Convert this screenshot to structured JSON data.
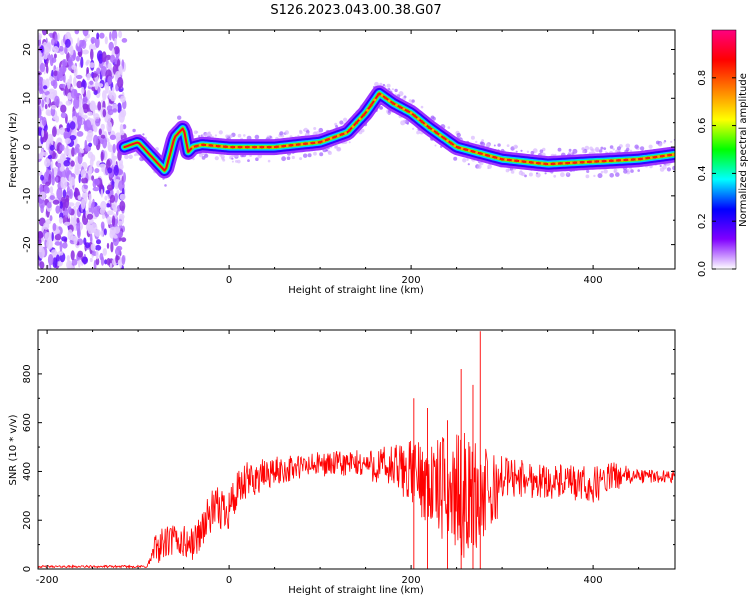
{
  "title": "S126.2023.043.00.38.G07",
  "chart_data": [
    {
      "type": "heatmap",
      "xlabel": "Height of straight line (km)",
      "ylabel": "Frequency (Hz)",
      "xlim": [
        -210,
        490
      ],
      "ylim": [
        -25,
        24
      ],
      "xticks": [
        -200,
        0,
        200,
        400
      ],
      "yticks": [
        -20,
        -10,
        0,
        10,
        20
      ],
      "colorbar": {
        "label": "Normalized spectral amplitude",
        "range": [
          0,
          1
        ],
        "ticks": [
          "0.0",
          "0.2",
          "0.4",
          "0.6",
          "0.8"
        ],
        "colormap": [
          "#ffffff",
          "#8000ff",
          "#0000ff",
          "#00ffff",
          "#00ff00",
          "#ffff00",
          "#ff8000",
          "#ff0000",
          "#ff0080"
        ]
      },
      "noise_region": {
        "x": [
          -210,
          -115
        ],
        "freq": [
          -25,
          24
        ]
      },
      "ridge": {
        "x": [
          -115,
          -100,
          -90,
          -80,
          -70,
          -60,
          -50,
          -45,
          -40,
          -30,
          0,
          50,
          100,
          130,
          150,
          165,
          180,
          200,
          220,
          250,
          300,
          350,
          400,
          450,
          490
        ],
        "freq": [
          0,
          1,
          -1,
          -3,
          -5,
          2,
          4,
          -1,
          0,
          0.5,
          0,
          0,
          1,
          3,
          7,
          11,
          9,
          7,
          4,
          0,
          -2.5,
          -3.5,
          -3,
          -2.5,
          -1.5
        ]
      }
    },
    {
      "type": "line",
      "xlabel": "Height of straight line (km)",
      "ylabel": "SNR (10 * v/v)",
      "xlim": [
        -210,
        490
      ],
      "ylim": [
        0,
        980
      ],
      "xticks": [
        -200,
        0,
        200,
        400
      ],
      "yticks": [
        0,
        200,
        400,
        600,
        800
      ],
      "color": "#ff0000",
      "envelope": {
        "x": [
          -210,
          -90,
          -80,
          -60,
          -40,
          -20,
          0,
          20,
          50,
          100,
          150,
          200,
          230,
          260,
          290,
          300,
          350,
          400,
          420,
          450,
          490
        ],
        "mean": [
          10,
          10,
          90,
          120,
          100,
          230,
          260,
          360,
          400,
          430,
          430,
          400,
          330,
          300,
          300,
          380,
          360,
          340,
          380,
          380,
          380
        ],
        "spread": [
          4,
          5,
          70,
          70,
          70,
          90,
          100,
          80,
          60,
          50,
          60,
          130,
          210,
          260,
          180,
          90,
          70,
          80,
          60,
          30,
          25
        ]
      },
      "spikes": [
        {
          "x": 276,
          "y": 975
        },
        {
          "x": 255,
          "y": 820
        },
        {
          "x": 268,
          "y": 755
        },
        {
          "x": 203,
          "y": 700
        },
        {
          "x": 218,
          "y": 660
        },
        {
          "x": 240,
          "y": 610
        }
      ]
    }
  ]
}
